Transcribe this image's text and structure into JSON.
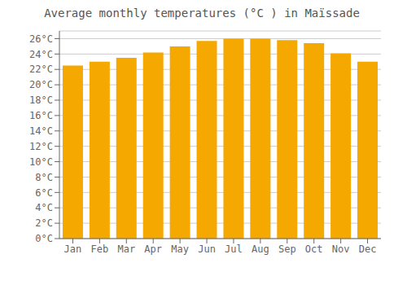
{
  "chart_data": {
    "type": "bar",
    "title": "Average monthly temperatures (°C ) in Maïssade",
    "categories": [
      "Jan",
      "Feb",
      "Mar",
      "Apr",
      "May",
      "Jun",
      "Jul",
      "Aug",
      "Sep",
      "Oct",
      "Nov",
      "Dec"
    ],
    "values": [
      22.5,
      23.0,
      23.5,
      24.2,
      25.0,
      25.7,
      26.0,
      26.0,
      25.8,
      25.4,
      24.1,
      23.0
    ],
    "color": "#F5A800",
    "ylim": [
      0,
      27
    ],
    "yticks": [
      {
        "value": 0,
        "label": "0°C"
      },
      {
        "value": 2,
        "label": "2°C"
      },
      {
        "value": 4,
        "label": "4°C"
      },
      {
        "value": 6,
        "label": "6°C"
      },
      {
        "value": 8,
        "label": "8°C"
      },
      {
        "value": 10,
        "label": "10°C"
      },
      {
        "value": 12,
        "label": "12°C"
      },
      {
        "value": 14,
        "label": "14°C"
      },
      {
        "value": 16,
        "label": "16°C"
      },
      {
        "value": 18,
        "label": "18°C"
      },
      {
        "value": 20,
        "label": "20°C"
      },
      {
        "value": 22,
        "label": "22°C"
      },
      {
        "value": 24,
        "label": "24°C"
      },
      {
        "value": 26,
        "label": "26°C"
      }
    ],
    "grid": true
  }
}
